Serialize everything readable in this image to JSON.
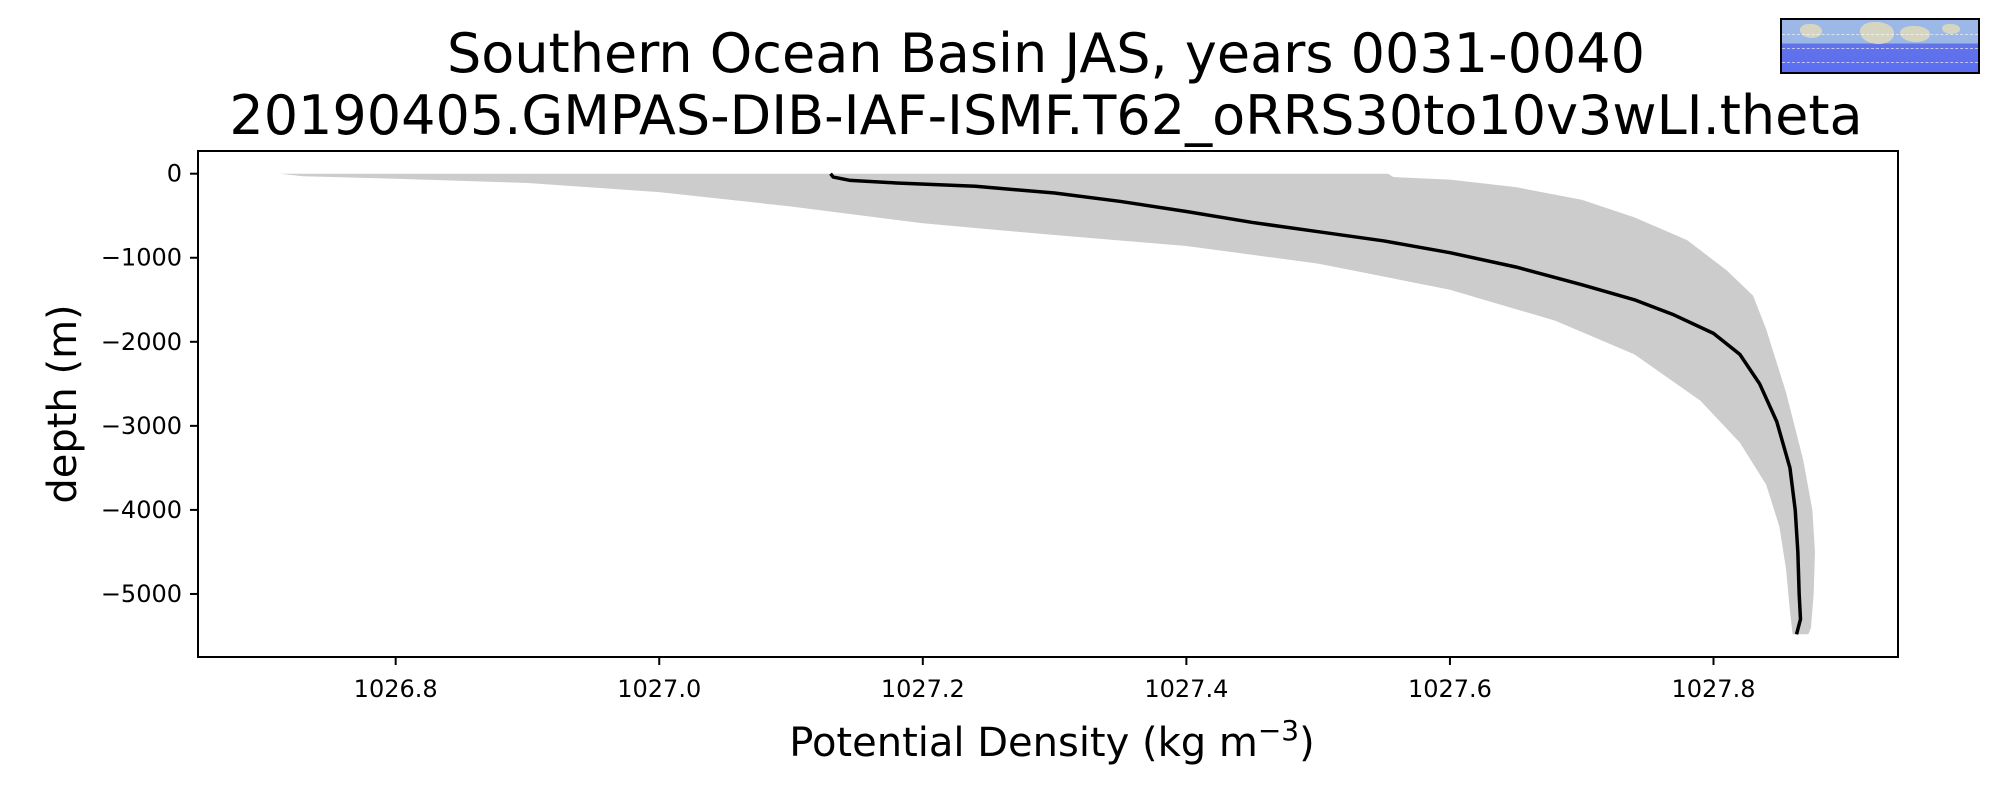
{
  "chart_data": {
    "type": "line",
    "title": "Southern Ocean Basin JAS, years 0031-0040",
    "subtitle": "20190405.GMPAS-DIB-IAF-ISMF.T62_oRRS30to10v3wLI.theta",
    "xlabel": "Potential Density (kg m",
    "xlabel_sup": "−3",
    "xlabel_close": ")",
    "ylabel": "depth (m)",
    "xlim": [
      1026.65,
      1027.94
    ],
    "ylim": [
      -5750,
      270
    ],
    "x_ticks": [
      1026.8,
      1027.0,
      1027.2,
      1027.4,
      1027.6,
      1027.8
    ],
    "x_tick_labels": [
      "1026.8",
      "1027.0",
      "1027.2",
      "1027.4",
      "1027.6",
      "1027.8"
    ],
    "y_ticks": [
      0,
      -1000,
      -2000,
      -3000,
      -4000,
      -5000
    ],
    "y_tick_labels": [
      "0",
      "−1000",
      "−2000",
      "−3000",
      "−4000",
      "−5000"
    ],
    "grid": false,
    "series": [
      {
        "kind": "mean",
        "color": "#000000",
        "points": [
          [
            1027.13,
            0
          ],
          [
            1027.132,
            -40
          ],
          [
            1027.145,
            -80
          ],
          [
            1027.18,
            -110
          ],
          [
            1027.24,
            -150
          ],
          [
            1027.3,
            -230
          ],
          [
            1027.35,
            -330
          ],
          [
            1027.4,
            -450
          ],
          [
            1027.45,
            -580
          ],
          [
            1027.5,
            -690
          ],
          [
            1027.55,
            -800
          ],
          [
            1027.6,
            -940
          ],
          [
            1027.65,
            -1110
          ],
          [
            1027.7,
            -1320
          ],
          [
            1027.74,
            -1500
          ],
          [
            1027.77,
            -1680
          ],
          [
            1027.8,
            -1900
          ],
          [
            1027.82,
            -2150
          ],
          [
            1027.835,
            -2500
          ],
          [
            1027.848,
            -2950
          ],
          [
            1027.858,
            -3500
          ],
          [
            1027.862,
            -4000
          ],
          [
            1027.864,
            -4500
          ],
          [
            1027.865,
            -5000
          ],
          [
            1027.866,
            -5300
          ],
          [
            1027.863,
            -5480
          ]
        ]
      }
    ],
    "band": {
      "kind": "range",
      "color": "#cccccc",
      "upper": [
        [
          1027.553,
          0
        ],
        [
          1027.557,
          -40
        ],
        [
          1027.6,
          -70
        ],
        [
          1027.65,
          -160
        ],
        [
          1027.7,
          -310
        ],
        [
          1027.74,
          -520
        ],
        [
          1027.78,
          -790
        ],
        [
          1027.81,
          -1150
        ],
        [
          1027.83,
          -1450
        ],
        [
          1027.84,
          -1850
        ],
        [
          1027.855,
          -2600
        ],
        [
          1027.868,
          -3400
        ],
        [
          1027.875,
          -4000
        ],
        [
          1027.877,
          -4500
        ],
        [
          1027.876,
          -5000
        ],
        [
          1027.874,
          -5400
        ],
        [
          1027.872,
          -5480
        ]
      ],
      "lower": [
        [
          1026.712,
          0
        ],
        [
          1026.73,
          -30
        ],
        [
          1026.8,
          -60
        ],
        [
          1026.9,
          -110
        ],
        [
          1027.0,
          -220
        ],
        [
          1027.1,
          -390
        ],
        [
          1027.2,
          -590
        ],
        [
          1027.3,
          -730
        ],
        [
          1027.4,
          -860
        ],
        [
          1027.5,
          -1070
        ],
        [
          1027.6,
          -1380
        ],
        [
          1027.68,
          -1750
        ],
        [
          1027.74,
          -2150
        ],
        [
          1027.79,
          -2700
        ],
        [
          1027.82,
          -3200
        ],
        [
          1027.84,
          -3700
        ],
        [
          1027.85,
          -4200
        ],
        [
          1027.855,
          -4700
        ],
        [
          1027.858,
          -5200
        ],
        [
          1027.86,
          -5480
        ]
      ]
    }
  },
  "inset_map": {
    "description_icon": "region-map-icon",
    "ocean_color": "#5a6ef0",
    "land_color": "#d9d6c0"
  }
}
